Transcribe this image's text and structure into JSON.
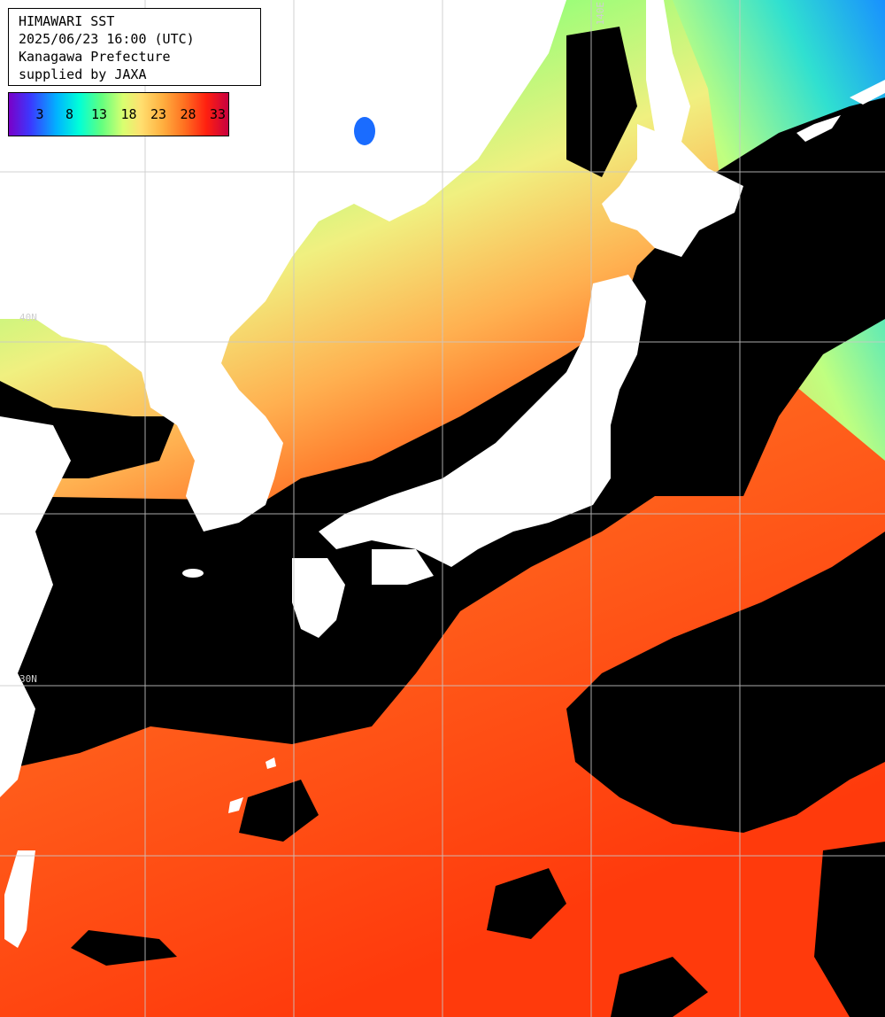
{
  "header": {
    "line1": "HIMAWARI SST",
    "line2": "2025/06/23 16:00 (UTC)",
    "line3": "Kanagawa Prefecture",
    "line4": "supplied by JAXA"
  },
  "legend": {
    "ticks": [
      "3",
      "8",
      "13",
      "18",
      "23",
      "28",
      "33"
    ],
    "colors": [
      "#7a00c8",
      "#3a3aff",
      "#00b4ff",
      "#00ffd8",
      "#60ff80",
      "#d8ff70",
      "#ffe070",
      "#ffb040",
      "#ff7020",
      "#ff2010",
      "#c80040"
    ]
  },
  "grid_labels": {
    "lon_top": "140E",
    "lat_left_1": "40N",
    "lat_left_2": "30N"
  },
  "colors": {
    "land": "#ffffff",
    "cloud": "#000000",
    "grid": "#c8c8c8",
    "sea_cold": "#60f0a0",
    "sea_mid": "#f0f080",
    "sea_warm": "#ff5a14"
  }
}
